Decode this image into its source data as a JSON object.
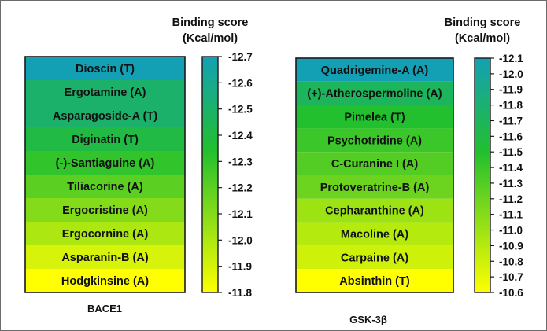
{
  "chart_data": [
    {
      "type": "heatmap",
      "target": "BACE1",
      "colorbar_title_line1": "Binding score",
      "colorbar_title_line2": "(Kcal/mol)",
      "colorbar_ticks": [
        "-12.7",
        "-12.6",
        "-12.5",
        "-12.4",
        "-12.3",
        "-12.2",
        "-12.1",
        "-12.0",
        "-11.9",
        "-11.8"
      ],
      "color_range": [
        -12.7,
        -11.8
      ],
      "rows": [
        {
          "label": "Dioscin (T)",
          "value": -12.7
        },
        {
          "label": "Ergotamine (A)",
          "value": -12.5
        },
        {
          "label": "Asparagoside-A (T)",
          "value": -12.5
        },
        {
          "label": "Diginatin (T)",
          "value": -12.4
        },
        {
          "label": "(-)-Santiaguine (A)",
          "value": -12.3
        },
        {
          "label": "Tiliacorine (A)",
          "value": -12.2
        },
        {
          "label": "Ergocristine (A)",
          "value": -12.1
        },
        {
          "label": "Ergocornine (A)",
          "value": -12.0
        },
        {
          "label": "Asparanin-B (A)",
          "value": -11.9
        },
        {
          "label": "Hodgkinsine (A)",
          "value": -11.8
        }
      ]
    },
    {
      "type": "heatmap",
      "target": "GSK-3β",
      "colorbar_title_line1": "Binding score",
      "colorbar_title_line2": "(Kcal/mol)",
      "colorbar_ticks": [
        "-12.1",
        "-12.0",
        "-11.9",
        "-11.8",
        "-11.7",
        "-11.6",
        "-11.5",
        "-11.4",
        "-11.3",
        "-11.2",
        "-11.1",
        "-11.0",
        "-10.9",
        "-10.8",
        "-10.7",
        "-10.6"
      ],
      "color_range": [
        -12.1,
        -10.6
      ],
      "rows": [
        {
          "label": "Quadrigemine-A (A)",
          "value": -12.1
        },
        {
          "label": "(+)-Atherospermoline (A)",
          "value": -11.7
        },
        {
          "label": "Pimelea (T)",
          "value": -11.5
        },
        {
          "label": "Psychotridine (A)",
          "value": -11.4
        },
        {
          "label": "C-Curanine I (A)",
          "value": -11.3
        },
        {
          "label": "Protoveratrine-B (A)",
          "value": -11.2
        },
        {
          "label": "Cepharanthine (A)",
          "value": -11.0
        },
        {
          "label": "Macoline (A)",
          "value": -10.9
        },
        {
          "label": "Carpaine (A)",
          "value": -10.8
        },
        {
          "label": "Absinthin (T)",
          "value": -10.6
        }
      ]
    }
  ],
  "colors": {
    "high": "#14a0b4",
    "mid": "#22bf2e",
    "low": "#ffff00",
    "grid": "#1a1a1a"
  }
}
